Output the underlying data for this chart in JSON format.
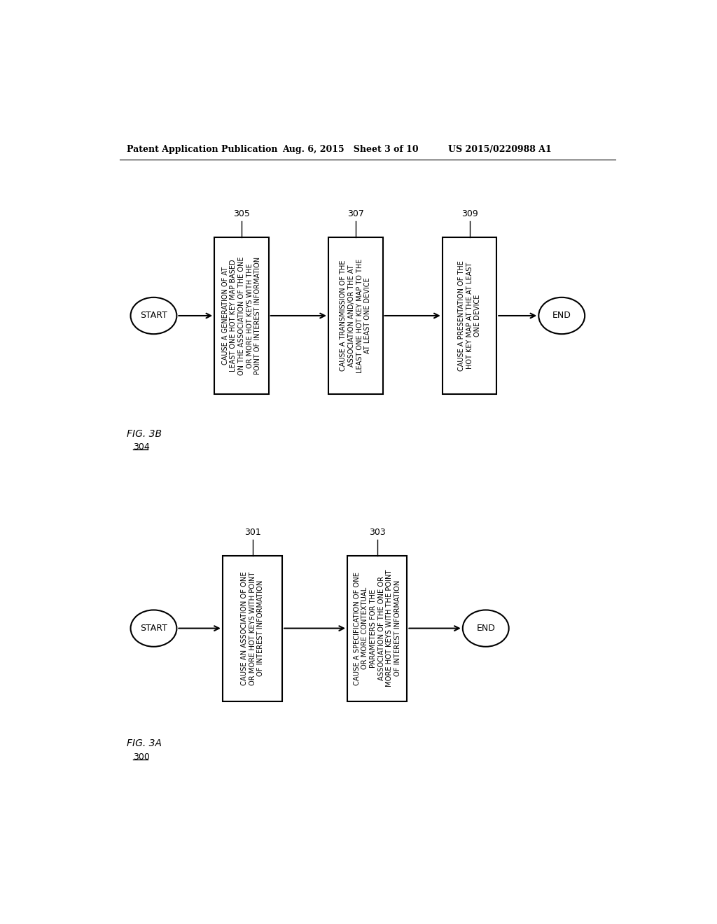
{
  "bg_color": "#ffffff",
  "header_left": "Patent Application Publication",
  "header_mid": "Aug. 6, 2015   Sheet 3 of 10",
  "header_right": "US 2015/0220988 A1",
  "fig3b": {
    "label": "FIG. 3B",
    "ref": "304",
    "start_label": "START",
    "end_label": "END",
    "boxes": [
      {
        "ref": "305",
        "text": "CAUSE A GENERATION OF AT\nLEAST ONE HOT KEY MAP BASED\nON THE ASSOCIATION OF THE ONE\nOR MORE HOT KEYS WITH THE\nPOINT OF INTEREST INFORMATION"
      },
      {
        "ref": "307",
        "text": "CAUSE A TRANSMISSION OF THE\nASSOCIATION AND/OR THE AT\nLEAST ONE HOT KEY MAP TO THE\nAT LEAST ONE DEVICE"
      },
      {
        "ref": "309",
        "text": "CAUSE A PRESENTATION OF THE\nHOT KEY MAP AT THE AT LEAST\nONE DEVICE"
      }
    ]
  },
  "fig3a": {
    "label": "FIG. 3A",
    "ref": "300",
    "start_label": "START",
    "end_label": "END",
    "boxes": [
      {
        "ref": "301",
        "text": "CAUSE AN ASSOCIATION OF ONE\nOR MORE HOT KEYS WITH POINT\nOF INTEREST INFORMATION"
      },
      {
        "ref": "303",
        "text": "CAUSE A SPECIFICATION OF ONE\nOR MORE CONTEXTUAL\nPARAMETERS FOR THE\nASSOCIATION OF THE ONE OR\nMORE HOT KEYS WITH THE POINT\nOF INTEREST INFORMATION"
      }
    ]
  }
}
